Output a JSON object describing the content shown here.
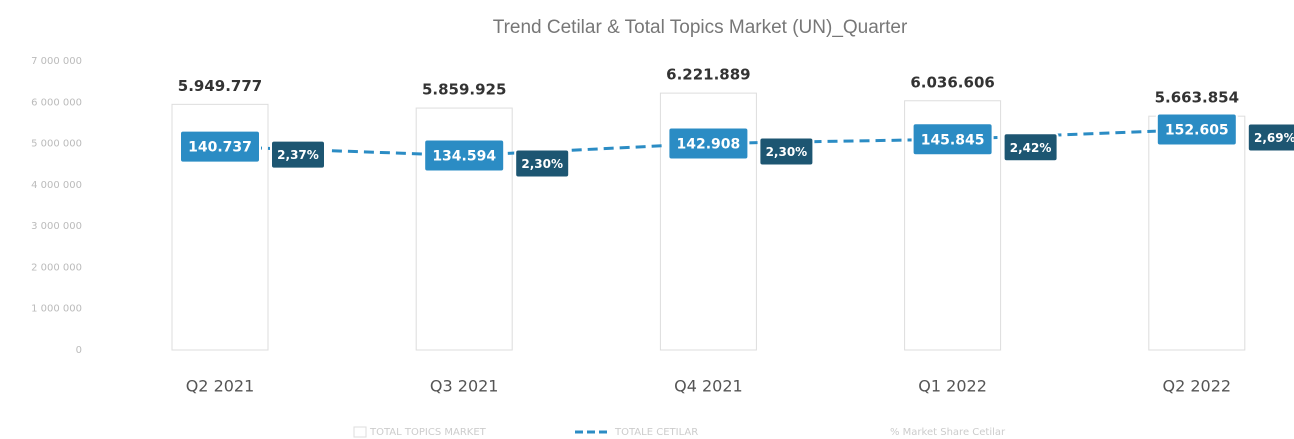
{
  "chart_data": {
    "type": "bar_line",
    "title": "Trend Cetilar & Total Topics Market (UN)_Quarter",
    "categories": [
      "Q2 2021",
      "Q3 2021",
      "Q4 2021",
      "Q1 2022",
      "Q2 2022"
    ],
    "series": [
      {
        "name": "TOTAL TOPICS MARKET",
        "type": "bar",
        "color": "#ffffff",
        "values": [
          5949777,
          5859925,
          6221889,
          6036606,
          5663854
        ],
        "value_labels": [
          "5.949.777",
          "5.859.925",
          "6.221.889",
          "6.036.606",
          "5.663.854"
        ]
      },
      {
        "name": "TOTALE CETILAR",
        "type": "line",
        "axis": "y2",
        "color": "#2b8cc4",
        "values": [
          140737,
          134594,
          142908,
          145845,
          152605
        ],
        "value_labels": [
          "140.737",
          "134.594",
          "142.908",
          "145.845",
          "152.605"
        ]
      },
      {
        "name": "% Market Share Cetilar",
        "type": "label",
        "color": "#1d5672",
        "values": [
          2.37,
          2.3,
          2.3,
          2.42,
          2.69
        ],
        "value_labels": [
          "2,37%",
          "2,30%",
          "2,30%",
          "2,42%",
          "2,69%"
        ]
      }
    ],
    "ylim": [
      0,
      7000000
    ],
    "yticks": [
      0,
      {
        "value": 1000000,
        "label": "1 000 000"
      },
      {
        "value": 2000000,
        "label": "2 000 000"
      },
      {
        "value": 3000000,
        "label": "3 000 000"
      },
      {
        "value": 4000000,
        "label": "4 000 000"
      },
      {
        "value": 5000000,
        "label": "5 000 000"
      },
      {
        "value": 6000000,
        "label": "6 000 000"
      },
      {
        "value": 7000000,
        "label": "7 000 000"
      }
    ],
    "y2lim": [
      0,
      200000
    ]
  }
}
